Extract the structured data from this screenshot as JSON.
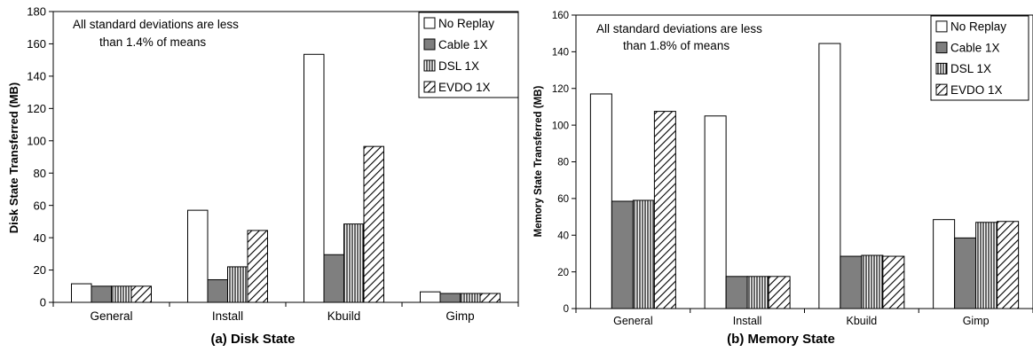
{
  "chart_data": [
    {
      "type": "bar",
      "title": "(a) Disk State",
      "xlabel": "",
      "ylabel": "Disk State Transferred (MB)",
      "annotation": [
        "All standard deviations are less",
        "than 1.4% of means"
      ],
      "ylim": [
        0,
        180
      ],
      "yticks": [
        0,
        20,
        40,
        60,
        80,
        100,
        120,
        140,
        160,
        180
      ],
      "categories": [
        "General",
        "Install",
        "Kbuild",
        "Gimp"
      ],
      "legend_position": "top-right",
      "series": [
        {
          "name": "No Replay",
          "values": [
            11.5,
            57,
            153.5,
            6.5
          ]
        },
        {
          "name": "Cable 1X",
          "values": [
            10,
            14,
            29.5,
            5.5
          ]
        },
        {
          "name": "DSL 1X",
          "values": [
            10,
            22,
            48.5,
            5.5
          ]
        },
        {
          "name": "EVDO 1X",
          "values": [
            10,
            44.5,
            96.5,
            5.5
          ]
        }
      ]
    },
    {
      "type": "bar",
      "title": "(b) Memory State",
      "xlabel": "",
      "ylabel": "Memory State Transferred (MB)",
      "annotation": [
        "All standard deviations are less",
        "than 1.8% of means"
      ],
      "ylim": [
        0,
        160
      ],
      "yticks": [
        0,
        20,
        40,
        60,
        80,
        100,
        120,
        140,
        160
      ],
      "categories": [
        "General",
        "Install",
        "Kbuild",
        "Gimp"
      ],
      "legend_position": "top-right",
      "series": [
        {
          "name": "No Replay",
          "values": [
            117,
            105,
            144.5,
            48.5
          ]
        },
        {
          "name": "Cable 1X",
          "values": [
            58.5,
            17.5,
            28.5,
            38.5
          ]
        },
        {
          "name": "DSL 1X",
          "values": [
            59,
            17.5,
            29,
            47
          ]
        },
        {
          "name": "EVDO 1X",
          "values": [
            107.5,
            17.5,
            28.5,
            47.5
          ]
        }
      ]
    }
  ]
}
